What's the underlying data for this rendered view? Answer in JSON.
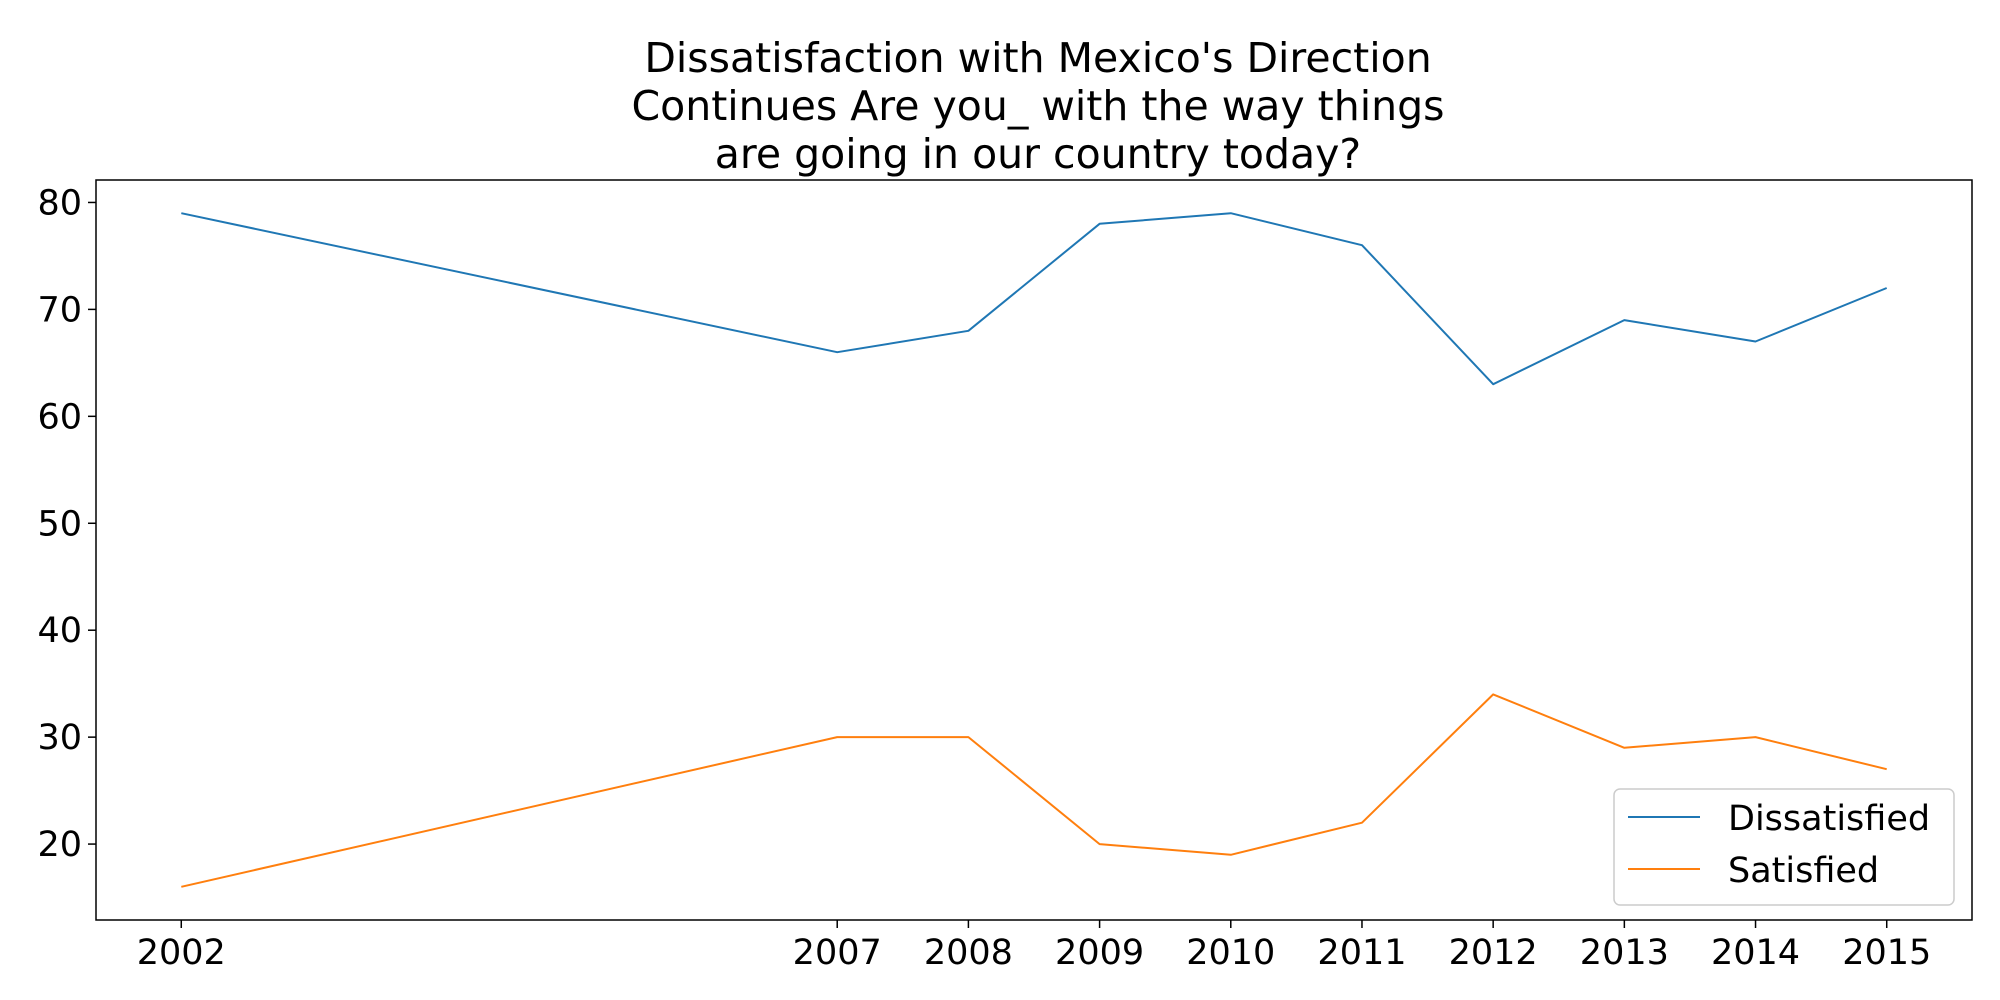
{
  "chart_data": {
    "type": "line",
    "title_lines": [
      "Dissatisfaction with Mexico's Direction",
      "Continues Are you_ with the way things",
      "are going in our country today?"
    ],
    "xlabel": "",
    "ylabel": "",
    "x": [
      2002,
      2007,
      2008,
      2009,
      2010,
      2011,
      2012,
      2013,
      2014,
      2015
    ],
    "x_tick_labels": [
      "2002",
      "2007",
      "2008",
      "2009",
      "2010",
      "2011",
      "2012",
      "2013",
      "2014",
      "2015"
    ],
    "xlim": [
      2001.35,
      2015.65
    ],
    "ylim": [
      12.9,
      82.1
    ],
    "y_ticks": [
      20,
      30,
      40,
      50,
      60,
      70,
      80
    ],
    "y_tick_labels": [
      "20",
      "30",
      "40",
      "50",
      "60",
      "70",
      "80"
    ],
    "grid": false,
    "legend_position": "lower-right",
    "series": [
      {
        "name": "Dissatisfied",
        "color": "#1f77b4",
        "values": [
          79,
          66,
          68,
          78,
          79,
          76,
          63,
          69,
          67,
          72
        ]
      },
      {
        "name": "Satisfied",
        "color": "#ff7f0e",
        "values": [
          16,
          30,
          30,
          20,
          19,
          22,
          34,
          29,
          30,
          27
        ]
      }
    ]
  }
}
